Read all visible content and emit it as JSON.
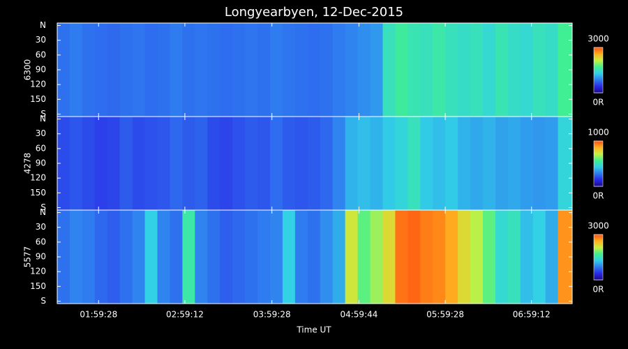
{
  "chart_data": {
    "type": "heatmap",
    "title": "Longyearbyen, 12-Dec-2015",
    "xlabel": "Time UT",
    "xlim": [
      5450,
      26840
    ],
    "xticks": [
      {
        "value": 7168,
        "label": "01:59:28"
      },
      {
        "value": 10752,
        "label": "02:59:12"
      },
      {
        "value": 14368,
        "label": "03:59:28"
      },
      {
        "value": 17984,
        "label": "04:59:44"
      },
      {
        "value": 21568,
        "label": "05:59:28"
      },
      {
        "value": 25152,
        "label": "06:59:12"
      }
    ],
    "ylim": [
      -5,
      185
    ],
    "yticks": [
      {
        "value": 0,
        "label": "N"
      },
      30,
      60,
      90,
      120,
      150,
      {
        "value": 180,
        "label": "S"
      }
    ],
    "colormap": [
      "#1a0a8a",
      "#2a2ae8",
      "#2f7cf0",
      "#31d0e8",
      "#40f090",
      "#c8f040",
      "#ffb020",
      "#ff5010"
    ],
    "x": [
      5710,
      6230,
      6750,
      7270,
      7790,
      8310,
      8830,
      9350,
      9870,
      10390,
      10910,
      11430,
      11950,
      12470,
      12990,
      13510,
      14030,
      14550,
      15070,
      15590,
      16110,
      16630,
      17150,
      17670,
      18190,
      18710,
      19230,
      19750,
      20270,
      20790,
      21310,
      21830,
      22350,
      22870,
      23390,
      23910,
      24430,
      24950,
      25470,
      25990,
      26510
    ],
    "panels": [
      {
        "name": "6300",
        "clim": [
          0,
          3000
        ],
        "cticks": [
          {
            "value": 0,
            "label": "0R"
          },
          3000
        ],
        "values": [
          800,
          850,
          800,
          780,
          760,
          800,
          820,
          780,
          800,
          850,
          800,
          820,
          800,
          780,
          800,
          820,
          800,
          850,
          820,
          800,
          780,
          800,
          850,
          900,
          950,
          1000,
          1500,
          1650,
          1550,
          1500,
          1600,
          1500,
          1450,
          1500,
          1400,
          1550,
          1450,
          1400,
          1500,
          1450,
          1700
        ]
      },
      {
        "name": "4278",
        "clim": [
          0,
          1000
        ],
        "cticks": [
          {
            "value": 0,
            "label": "0R"
          },
          1000
        ],
        "values": [
          200,
          220,
          200,
          180,
          190,
          230,
          200,
          210,
          220,
          250,
          230,
          240,
          200,
          190,
          210,
          230,
          220,
          260,
          230,
          220,
          230,
          250,
          300,
          380,
          400,
          380,
          420,
          450,
          500,
          420,
          400,
          420,
          380,
          360,
          380,
          350,
          360,
          340,
          330,
          340,
          450
        ]
      },
      {
        "name": "5577",
        "clim": [
          0,
          3000
        ],
        "cticks": [
          {
            "value": 0,
            "label": "0R"
          },
          3000
        ],
        "values": [
          800,
          900,
          850,
          750,
          700,
          800,
          900,
          1300,
          900,
          800,
          1600,
          900,
          800,
          700,
          750,
          800,
          850,
          900,
          1300,
          850,
          800,
          950,
          1100,
          2200,
          1800,
          2000,
          2300,
          2850,
          2900,
          2800,
          2750,
          2600,
          2300,
          2100,
          1800,
          1400,
          1500,
          1200,
          1300,
          1100,
          2700
        ]
      }
    ]
  }
}
